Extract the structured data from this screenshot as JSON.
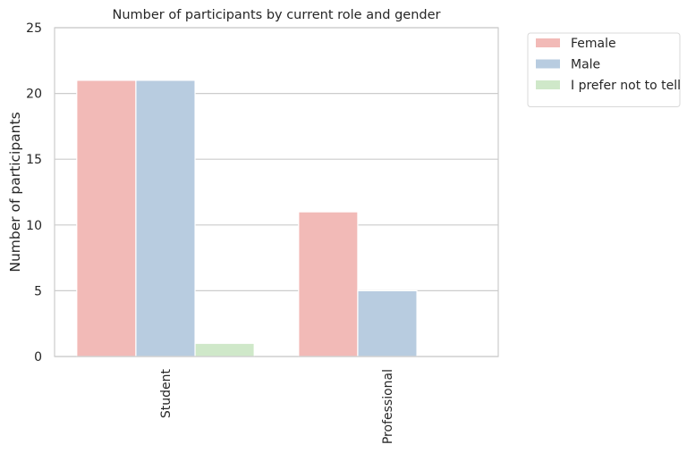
{
  "chart_data": {
    "type": "bar",
    "title": "Number of participants by current role and gender",
    "xlabel": "",
    "ylabel": "Number of participants",
    "categories": [
      "Student",
      "Professional"
    ],
    "series": [
      {
        "name": "Female",
        "values": [
          21,
          11
        ],
        "color": "#f2bab7"
      },
      {
        "name": "Male",
        "values": [
          21,
          5
        ],
        "color": "#b8cce0"
      },
      {
        "name": "I prefer not to tell",
        "values": [
          1,
          0
        ],
        "color": "#cfe8c9"
      }
    ],
    "ylim": [
      0,
      25
    ],
    "yticks": [
      0,
      5,
      10,
      15,
      20,
      25
    ],
    "grid": true,
    "legend_position": "outside-top-right",
    "colors": {
      "grid": "#cccccc",
      "spine": "#cccccc",
      "text": "#262626"
    }
  }
}
